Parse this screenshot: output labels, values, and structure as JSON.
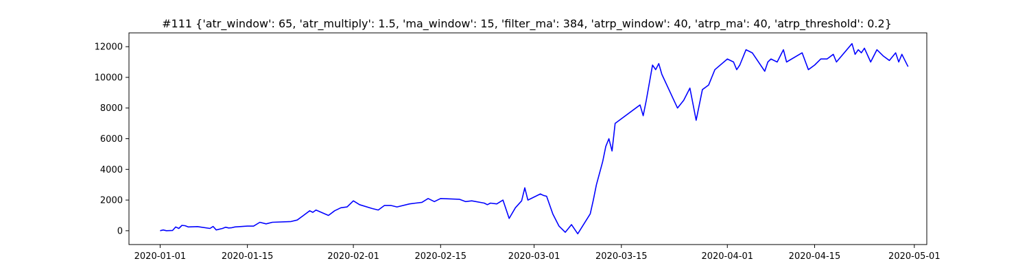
{
  "chart_data": {
    "type": "line",
    "title": "#111 {'atr_window': 65, 'atr_multiply': 1.5, 'ma_window': 15, 'filter_ma': 384, 'atrp_window': 40, 'atrp_ma': 40, 'atrp_threshold': 0.2}",
    "xlabel": "",
    "ylabel": "",
    "x_axis_type": "date",
    "xlim": [
      "2019-12-27",
      "2020-05-03"
    ],
    "ylim": [
      -900,
      12900
    ],
    "x_ticks": [
      "2020-01-01",
      "2020-01-15",
      "2020-02-01",
      "2020-02-15",
      "2020-03-01",
      "2020-03-15",
      "2020-04-01",
      "2020-04-15",
      "2020-05-01"
    ],
    "x_tick_labels": [
      "2020-01-01",
      "2020-01-15",
      "2020-02-01",
      "2020-02-15",
      "2020-03-01",
      "2020-03-15",
      "2020-04-01",
      "2020-04-15",
      "2020-05-01"
    ],
    "y_ticks": [
      0,
      2000,
      4000,
      6000,
      8000,
      10000,
      12000
    ],
    "y_tick_labels": [
      "0",
      "2000",
      "4000",
      "6000",
      "8000",
      "10000",
      "12000"
    ],
    "grid": false,
    "legend": "none",
    "line_color": "#0000ff",
    "series": [
      {
        "x": [
          "2020-01-01",
          "2020-01-01",
          "2020-01-02",
          "2020-01-03",
          "2020-01-03",
          "2020-01-04",
          "2020-01-04",
          "2020-01-05",
          "2020-01-05",
          "2020-01-07",
          "2020-01-09",
          "2020-01-09",
          "2020-01-10",
          "2020-01-11",
          "2020-01-11",
          "2020-01-12",
          "2020-01-12",
          "2020-01-13",
          "2020-01-15",
          "2020-01-16",
          "2020-01-17",
          "2020-01-18",
          "2020-01-19",
          "2020-01-22",
          "2020-01-23",
          "2020-01-24",
          "2020-01-25",
          "2020-01-25",
          "2020-01-26",
          "2020-01-28",
          "2020-01-29",
          "2020-01-30",
          "2020-01-31",
          "2020-02-01",
          "2020-02-02",
          "2020-02-04",
          "2020-02-05",
          "2020-02-06",
          "2020-02-07",
          "2020-02-08",
          "2020-02-10",
          "2020-02-11",
          "2020-02-12",
          "2020-02-13",
          "2020-02-14",
          "2020-02-15",
          "2020-02-18",
          "2020-02-19",
          "2020-02-20",
          "2020-02-22",
          "2020-02-22",
          "2020-02-23",
          "2020-02-24",
          "2020-02-25",
          "2020-02-26",
          "2020-02-27",
          "2020-02-28",
          "2020-02-28",
          "2020-02-29",
          "2020-03-02",
          "2020-03-02",
          "2020-03-03",
          "2020-03-04",
          "2020-03-05",
          "2020-03-06",
          "2020-03-07",
          "2020-03-08",
          "2020-03-10",
          "2020-03-10",
          "2020-03-11",
          "2020-03-12",
          "2020-03-12",
          "2020-03-13",
          "2020-03-13",
          "2020-03-14",
          "2020-03-18",
          "2020-03-18",
          "2020-03-19",
          "2020-03-20",
          "2020-03-20",
          "2020-03-21",
          "2020-03-21",
          "2020-03-24",
          "2020-03-25",
          "2020-03-26",
          "2020-03-27",
          "2020-03-28",
          "2020-03-29",
          "2020-03-30",
          "2020-04-01",
          "2020-04-02",
          "2020-04-02",
          "2020-04-03",
          "2020-04-04",
          "2020-04-05",
          "2020-04-07",
          "2020-04-07",
          "2020-04-08",
          "2020-04-09",
          "2020-04-10",
          "2020-04-10",
          "2020-04-13",
          "2020-04-14",
          "2020-04-15",
          "2020-04-16",
          "2020-04-17",
          "2020-04-18",
          "2020-04-18",
          "2020-04-21",
          "2020-04-21",
          "2020-04-22",
          "2020-04-22",
          "2020-04-23",
          "2020-04-24",
          "2020-04-25",
          "2020-04-26",
          "2020-04-27",
          "2020-04-28",
          "2020-04-28",
          "2020-04-29",
          "2020-04-30"
        ],
        "y": [
          0,
          50,
          0,
          20,
          250,
          150,
          350,
          330,
          250,
          270,
          150,
          280,
          50,
          150,
          230,
          180,
          200,
          250,
          300,
          300,
          550,
          450,
          550,
          600,
          700,
          1000,
          1300,
          1200,
          1350,
          1000,
          1300,
          1500,
          1550,
          1950,
          1700,
          1450,
          1350,
          1650,
          1650,
          1550,
          1750,
          1800,
          1850,
          2100,
          1900,
          2100,
          2050,
          1900,
          1950,
          1800,
          1700,
          1800,
          1750,
          2000,
          800,
          1500,
          1950,
          2800,
          2000,
          2400,
          2300,
          2250,
          1100,
          300,
          -100,
          400,
          -200,
          1100,
          2000,
          3000,
          4500,
          5500,
          6000,
          5200,
          7000,
          8200,
          7500,
          8500,
          10800,
          10500,
          10900,
          10200,
          8000,
          8500,
          9300,
          7200,
          9200,
          9500,
          10500,
          11200,
          11000,
          10500,
          10800,
          11800,
          11600,
          10400,
          11000,
          11200,
          11000,
          11800,
          11000,
          11600,
          10500,
          10800,
          11200,
          11200,
          11500,
          11000,
          12200,
          11500,
          11800,
          11600,
          11900,
          11000,
          11800,
          11400,
          11100,
          11600,
          11000,
          11500,
          10700
        ]
      }
    ]
  }
}
